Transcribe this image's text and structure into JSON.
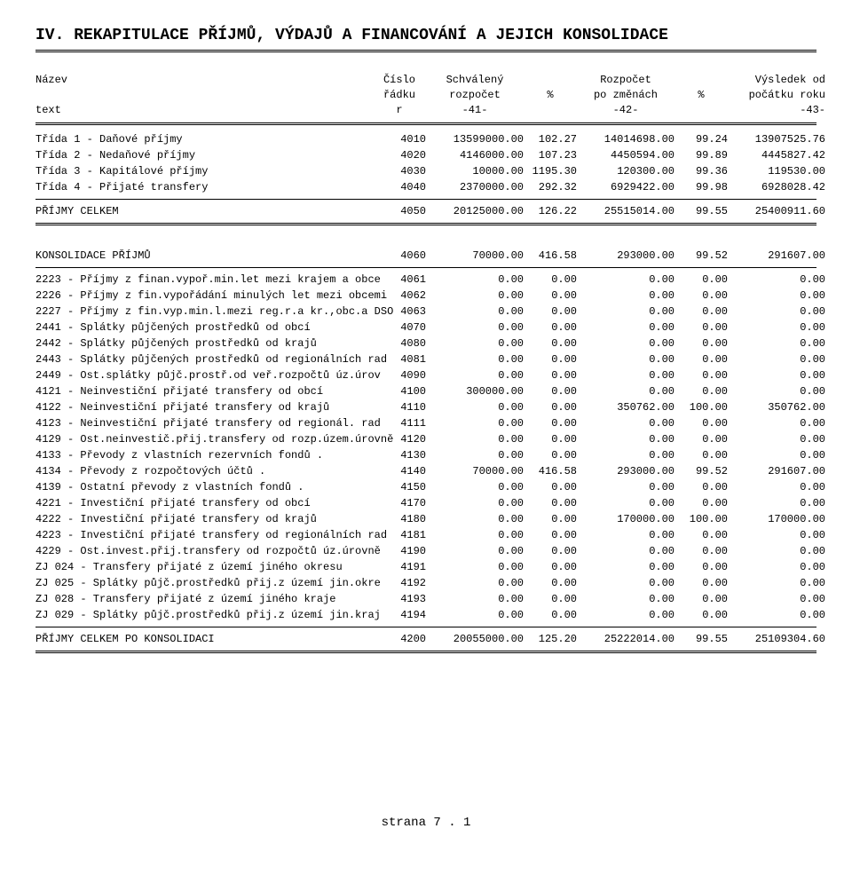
{
  "title": "IV. REKAPITULACE PŘÍJMŮ, VÝDAJŮ A FINANCOVÁNÍ A JEJICH KONSOLIDACE",
  "header": {
    "col0": [
      "Název",
      "",
      "text"
    ],
    "col1": [
      "Číslo",
      "řádku",
      "r"
    ],
    "col2": [
      "Schválený",
      "rozpočet",
      "-41-"
    ],
    "col3": [
      "",
      "%",
      ""
    ],
    "col4": [
      "Rozpočet",
      "po změnách",
      "-42-"
    ],
    "col5": [
      "",
      "%",
      ""
    ],
    "col6": [
      "Výsledek od",
      "počátku roku",
      "-43-"
    ]
  },
  "section1": [
    {
      "label": "Třída 1 - Daňové příjmy",
      "r": "4010",
      "c2": "13599000.00",
      "c3": "102.27",
      "c4": "14014698.00",
      "c5": "99.24",
      "c6": "13907525.76"
    },
    {
      "label": "Třída 2 - Nedaňové příjmy",
      "r": "4020",
      "c2": "4146000.00",
      "c3": "107.23",
      "c4": "4450594.00",
      "c5": "99.89",
      "c6": "4445827.42"
    },
    {
      "label": "Třída 3 - Kapitálové příjmy",
      "r": "4030",
      "c2": "10000.00",
      "c3": "1195.30",
      "c4": "120300.00",
      "c5": "99.36",
      "c6": "119530.00"
    },
    {
      "label": "Třída 4 - Přijaté transfery",
      "r": "4040",
      "c2": "2370000.00",
      "c3": "292.32",
      "c4": "6929422.00",
      "c5": "99.98",
      "c6": "6928028.42"
    }
  ],
  "section1_total": {
    "label": "PŘÍJMY CELKEM",
    "r": "4050",
    "c2": "20125000.00",
    "c3": "126.22",
    "c4": "25515014.00",
    "c5": "99.55",
    "c6": "25400911.60"
  },
  "section2_header": {
    "label": "KONSOLIDACE PŘÍJMŮ",
    "r": "4060",
    "c2": "70000.00",
    "c3": "416.58",
    "c4": "293000.00",
    "c5": "99.52",
    "c6": "291607.00"
  },
  "section2": [
    {
      "label": "2223 - Příjmy z finan.vypoř.min.let mezi krajem a obce",
      "r": "4061",
      "c2": "0.00",
      "c3": "0.00",
      "c4": "0.00",
      "c5": "0.00",
      "c6": "0.00"
    },
    {
      "label": "2226 - Příjmy z fin.vypořádání minulých let mezi obcemi",
      "r": "4062",
      "c2": "0.00",
      "c3": "0.00",
      "c4": "0.00",
      "c5": "0.00",
      "c6": "0.00"
    },
    {
      "label": "2227 - Příjmy z fin.vyp.min.l.mezi reg.r.a kr.,obc.a DSO",
      "r": "4063",
      "c2": "0.00",
      "c3": "0.00",
      "c4": "0.00",
      "c5": "0.00",
      "c6": "0.00"
    },
    {
      "label": "2441 - Splátky půjčených prostředků od obcí",
      "r": "4070",
      "c2": "0.00",
      "c3": "0.00",
      "c4": "0.00",
      "c5": "0.00",
      "c6": "0.00"
    },
    {
      "label": "2442 - Splátky půjčených prostředků od krajů",
      "r": "4080",
      "c2": "0.00",
      "c3": "0.00",
      "c4": "0.00",
      "c5": "0.00",
      "c6": "0.00"
    },
    {
      "label": "2443 - Splátky půjčených prostředků od regionálních rad",
      "r": "4081",
      "c2": "0.00",
      "c3": "0.00",
      "c4": "0.00",
      "c5": "0.00",
      "c6": "0.00"
    },
    {
      "label": "2449 - Ost.splátky půjč.prostř.od veř.rozpočtů úz.úrov",
      "r": "4090",
      "c2": "0.00",
      "c3": "0.00",
      "c4": "0.00",
      "c5": "0.00",
      "c6": "0.00"
    },
    {
      "label": "4121 - Neinvestiční přijaté transfery od obcí",
      "r": "4100",
      "c2": "300000.00",
      "c3": "0.00",
      "c4": "0.00",
      "c5": "0.00",
      "c6": "0.00"
    },
    {
      "label": "4122 - Neinvestiční přijaté transfery od krajů",
      "r": "4110",
      "c2": "0.00",
      "c3": "0.00",
      "c4": "350762.00",
      "c5": "100.00",
      "c6": "350762.00"
    },
    {
      "label": "4123 - Neinvestiční přijaté transfery od regionál. rad",
      "r": "4111",
      "c2": "0.00",
      "c3": "0.00",
      "c4": "0.00",
      "c5": "0.00",
      "c6": "0.00"
    },
    {
      "label": "4129 - Ost.neinvestič.přij.transfery od rozp.územ.úrovně",
      "r": "4120",
      "c2": "0.00",
      "c3": "0.00",
      "c4": "0.00",
      "c5": "0.00",
      "c6": "0.00"
    },
    {
      "label": "4133 - Převody z vlastních rezervních fondů      .",
      "r": "4130",
      "c2": "0.00",
      "c3": "0.00",
      "c4": "0.00",
      "c5": "0.00",
      "c6": "0.00"
    },
    {
      "label": "4134 - Převody z rozpočtových účtů             .",
      "r": "4140",
      "c2": "70000.00",
      "c3": "416.58",
      "c4": "293000.00",
      "c5": "99.52",
      "c6": "291607.00"
    },
    {
      "label": "4139 - Ostatní převody z vlastních fondů        .",
      "r": "4150",
      "c2": "0.00",
      "c3": "0.00",
      "c4": "0.00",
      "c5": "0.00",
      "c6": "0.00"
    },
    {
      "label": "4221 - Investiční přijaté transfery od obcí",
      "r": "4170",
      "c2": "0.00",
      "c3": "0.00",
      "c4": "0.00",
      "c5": "0.00",
      "c6": "0.00"
    },
    {
      "label": "4222 - Investiční přijaté transfery od krajů",
      "r": "4180",
      "c2": "0.00",
      "c3": "0.00",
      "c4": "170000.00",
      "c5": "100.00",
      "c6": "170000.00"
    },
    {
      "label": "4223 - Investiční přijaté transfery od regionálních rad",
      "r": "4181",
      "c2": "0.00",
      "c3": "0.00",
      "c4": "0.00",
      "c5": "0.00",
      "c6": "0.00"
    },
    {
      "label": "4229 - Ost.invest.přij.transfery od rozpočtů úz.úrovně",
      "r": "4190",
      "c2": "0.00",
      "c3": "0.00",
      "c4": "0.00",
      "c5": "0.00",
      "c6": "0.00"
    },
    {
      "label": "ZJ 024 - Transfery přijaté z území jiného okresu",
      "r": "4191",
      "c2": "0.00",
      "c3": "0.00",
      "c4": "0.00",
      "c5": "0.00",
      "c6": "0.00"
    },
    {
      "label": "ZJ 025 - Splátky půjč.prostředků přij.z území jin.okre",
      "r": "4192",
      "c2": "0.00",
      "c3": "0.00",
      "c4": "0.00",
      "c5": "0.00",
      "c6": "0.00"
    },
    {
      "label": "ZJ 028 - Transfery přijaté z území jiného kraje",
      "r": "4193",
      "c2": "0.00",
      "c3": "0.00",
      "c4": "0.00",
      "c5": "0.00",
      "c6": "0.00"
    },
    {
      "label": "ZJ 029 - Splátky půjč.prostředků přij.z území jin.kraj",
      "r": "4194",
      "c2": "0.00",
      "c3": "0.00",
      "c4": "0.00",
      "c5": "0.00",
      "c6": "0.00"
    }
  ],
  "section2_total": {
    "label": "PŘÍJMY CELKEM PO KONSOLIDACI",
    "r": "4200",
    "c2": "20055000.00",
    "c3": "125.20",
    "c4": "25222014.00",
    "c5": "99.55",
    "c6": "25109304.60"
  },
  "footer": "strana 7 . 1"
}
